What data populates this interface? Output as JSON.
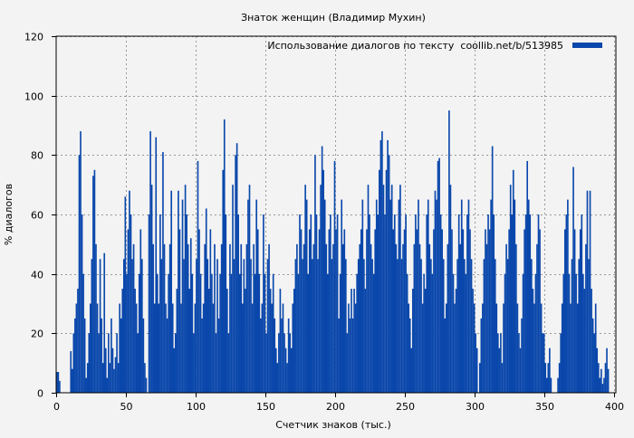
{
  "chart_data": {
    "type": "bar",
    "title": "Знаток женщин (Владимир Мухин)",
    "xlabel": "Счетчик знаков (тыс.)",
    "ylabel": "% диалогов",
    "xlim": [
      0,
      401
    ],
    "ylim": [
      0,
      120
    ],
    "xticks": [
      0,
      50,
      100,
      150,
      200,
      250,
      300,
      350,
      400
    ],
    "yticks": [
      0,
      20,
      40,
      60,
      80,
      100,
      120
    ],
    "grid": true,
    "legend": {
      "label": "Использование диалогов по тексту  coollib.net/b/513985",
      "placement": "top-right"
    },
    "bar_color": "#0a47ab",
    "x_start": 0,
    "x_step": 1,
    "values": [
      7,
      7,
      4,
      0,
      0,
      0,
      0,
      0,
      0,
      0,
      14,
      8,
      20,
      25,
      30,
      35,
      80,
      88,
      60,
      40,
      25,
      5,
      10,
      20,
      30,
      45,
      73,
      75,
      50,
      30,
      20,
      45,
      25,
      10,
      47,
      15,
      5,
      20,
      10,
      25,
      15,
      8,
      12,
      20,
      10,
      30,
      25,
      35,
      45,
      66,
      40,
      55,
      68,
      60,
      45,
      50,
      35,
      30,
      20,
      40,
      55,
      45,
      25,
      10,
      5,
      0,
      60,
      88,
      70,
      50,
      30,
      86,
      40,
      30,
      60,
      45,
      81,
      50,
      30,
      25,
      40,
      50,
      68,
      30,
      15,
      20,
      35,
      68,
      55,
      30,
      65,
      45,
      70,
      60,
      50,
      35,
      52,
      40,
      20,
      30,
      45,
      78,
      55,
      40,
      25,
      30,
      50,
      62,
      45,
      35,
      55,
      40,
      30,
      50,
      20,
      45,
      25,
      40,
      50,
      75,
      92,
      60,
      35,
      20,
      50,
      40,
      70,
      45,
      80,
      84,
      60,
      40,
      50,
      30,
      45,
      35,
      50,
      65,
      70,
      45,
      30,
      50,
      40,
      65,
      55,
      40,
      25,
      30,
      60,
      40,
      20,
      45,
      50,
      35,
      30,
      40,
      25,
      15,
      10,
      20,
      35,
      25,
      30,
      20,
      15,
      10,
      25,
      20,
      15,
      30,
      35,
      45,
      50,
      40,
      60,
      55,
      45,
      50,
      70,
      65,
      40,
      55,
      60,
      45,
      50,
      80,
      60,
      45,
      55,
      70,
      83,
      75,
      65,
      50,
      40,
      55,
      60,
      45,
      50,
      78,
      55,
      60,
      25,
      40,
      65,
      50,
      55,
      45,
      20,
      30,
      25,
      35,
      25,
      35,
      30,
      40,
      45,
      50,
      55,
      65,
      45,
      35,
      55,
      70,
      60,
      50,
      45,
      40,
      55,
      65,
      60,
      75,
      85,
      88,
      70,
      60,
      75,
      85,
      80,
      65,
      70,
      55,
      60,
      50,
      45,
      65,
      70,
      45,
      50,
      55,
      60,
      40,
      30,
      25,
      15,
      35,
      50,
      60,
      55,
      65,
      50,
      45,
      30,
      40,
      35,
      60,
      65,
      50,
      45,
      40,
      55,
      68,
      65,
      78,
      79,
      60,
      55,
      45,
      25,
      30,
      50,
      95,
      70,
      55,
      40,
      30,
      35,
      45,
      60,
      50,
      65,
      55,
      45,
      40,
      60,
      65,
      55,
      45,
      35,
      30,
      20,
      15,
      0,
      10,
      25,
      30,
      45,
      55,
      50,
      60,
      55,
      65,
      83,
      60,
      45,
      30,
      20,
      15,
      20,
      10,
      30,
      40,
      50,
      45,
      55,
      70,
      60,
      75,
      65,
      50,
      30,
      20,
      15,
      25,
      40,
      55,
      60,
      78,
      65,
      60,
      45,
      35,
      30,
      40,
      50,
      60,
      55,
      30,
      20,
      20,
      10,
      5,
      10,
      15,
      5,
      0,
      0,
      0,
      0,
      5,
      10,
      20,
      30,
      40,
      55,
      60,
      65,
      40,
      30,
      45,
      76,
      55,
      40,
      30,
      45,
      55,
      60,
      40,
      35,
      50,
      68,
      45,
      68,
      35,
      25,
      20,
      30,
      15,
      10,
      5,
      8,
      3,
      5,
      10,
      15,
      8,
      0,
      0,
      0
    ]
  }
}
